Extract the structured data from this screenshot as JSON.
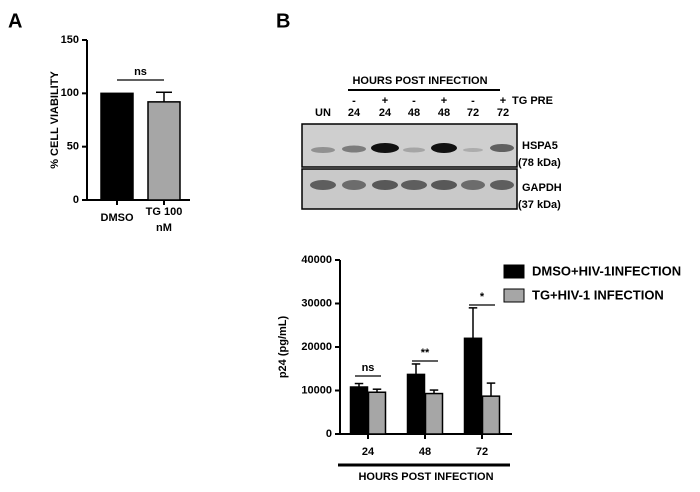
{
  "panel_labels": [
    "A",
    "B"
  ],
  "blot": {
    "header": "HOURS POST INFECTION",
    "sign_row": [
      "-",
      "+",
      "-",
      "+",
      "-",
      "+"
    ],
    "treatment_label": "TG PRE",
    "lane_row": [
      "UN",
      "24",
      "24",
      "48",
      "48",
      "72",
      "72"
    ],
    "bands": [
      {
        "name": "HSPA5",
        "size": "(78 kDa)"
      },
      {
        "name": "GAPDH",
        "size": "(37 kDa)"
      }
    ]
  },
  "chart_data": [
    {
      "type": "bar",
      "ylabel": "% CELL VIABILITY",
      "categories": [
        "DMSO",
        "TG 100 nM"
      ],
      "values": [
        100,
        92
      ],
      "errors": [
        null,
        9
      ],
      "colors": [
        "#000000",
        "#a6a6a6"
      ],
      "ylim": [
        0,
        150
      ],
      "yticks": [
        0,
        50,
        100,
        150
      ],
      "significance": [
        "ns"
      ]
    },
    {
      "type": "bar",
      "ylabel": "p24 (pg/mL)",
      "xlabel": "HOURS POST INFECTION",
      "categories": [
        "24",
        "48",
        "72"
      ],
      "series": [
        {
          "name": "DMSO+HIV-1INFECTION",
          "color": "#000000",
          "values": [
            10800,
            13700,
            22000
          ],
          "errors": [
            800,
            2400,
            7000
          ]
        },
        {
          "name": "TG+HIV-1 INFECTION",
          "color": "#a6a6a6",
          "values": [
            9600,
            9300,
            8700
          ],
          "errors": [
            700,
            800,
            3000
          ]
        }
      ],
      "ylim": [
        0,
        40000
      ],
      "yticks": [
        0,
        10000,
        20000,
        30000,
        40000
      ],
      "significance": [
        "ns",
        "**",
        "*"
      ],
      "legend": "top-right"
    }
  ]
}
